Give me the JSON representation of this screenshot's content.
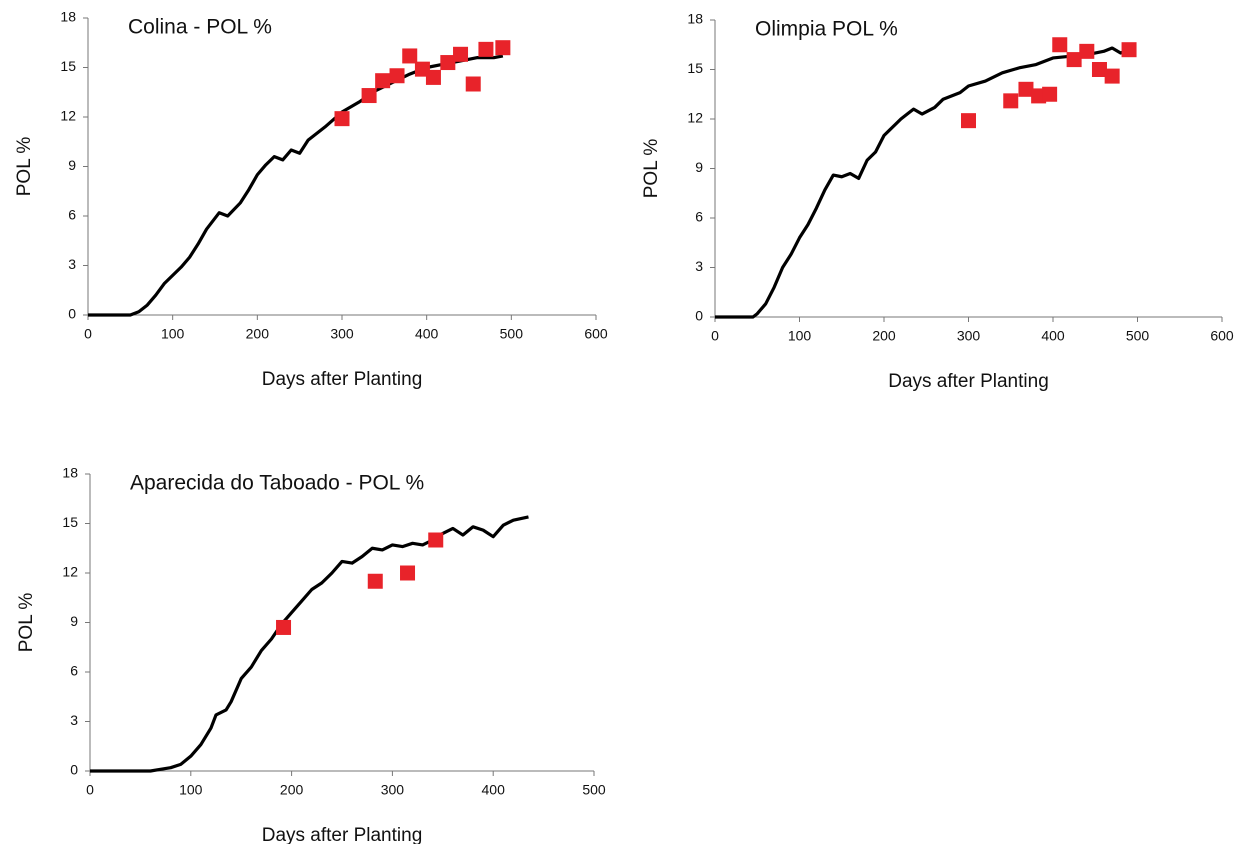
{
  "chart_data": [
    {
      "type": "line",
      "title": "Colina - POL %",
      "x_label": "Days after Planting",
      "y_label": "POL %",
      "xlim": [
        0,
        600
      ],
      "xticks": [
        0,
        100,
        200,
        300,
        400,
        500,
        600
      ],
      "ylim": [
        0,
        18
      ],
      "yticks": [
        0,
        3,
        6,
        9,
        12,
        15,
        18
      ],
      "series": [
        {
          "type": "line",
          "color": "#000000",
          "x": [
            0,
            50,
            60,
            70,
            80,
            90,
            100,
            110,
            120,
            130,
            140,
            155,
            165,
            180,
            190,
            200,
            210,
            220,
            230,
            240,
            250,
            260,
            280,
            300,
            320,
            340,
            360,
            380,
            400,
            420,
            440,
            460,
            480,
            490
          ],
          "values": [
            0,
            0,
            0.2,
            0.6,
            1.2,
            1.9,
            2.4,
            2.9,
            3.5,
            4.3,
            5.2,
            6.2,
            6.0,
            6.8,
            7.6,
            8.5,
            9.1,
            9.6,
            9.4,
            10.0,
            9.8,
            10.6,
            11.4,
            12.3,
            12.9,
            13.6,
            14.1,
            14.6,
            15.0,
            15.2,
            15.4,
            15.6,
            15.6,
            15.7
          ]
        },
        {
          "type": "scatter",
          "marker": "square",
          "color": "#e8232a",
          "x": [
            300,
            332,
            348,
            365,
            380,
            395,
            408,
            425,
            440,
            455,
            470,
            490
          ],
          "values": [
            11.9,
            13.3,
            14.2,
            14.5,
            15.7,
            14.9,
            14.4,
            15.3,
            15.8,
            14.0,
            16.1,
            16.2
          ]
        }
      ]
    },
    {
      "type": "line",
      "title": "Olimpia POL %",
      "x_label": "Days after Planting",
      "y_label": "POL %",
      "xlim": [
        0,
        600
      ],
      "xticks": [
        0,
        100,
        200,
        300,
        400,
        500,
        600
      ],
      "ylim": [
        0,
        18
      ],
      "yticks": [
        0,
        3,
        6,
        9,
        12,
        15,
        18
      ],
      "series": [
        {
          "type": "line",
          "color": "#000000",
          "x": [
            0,
            45,
            50,
            60,
            70,
            80,
            90,
            100,
            110,
            120,
            130,
            140,
            150,
            160,
            170,
            180,
            190,
            200,
            210,
            220,
            230,
            235,
            245,
            260,
            270,
            290,
            300,
            320,
            340,
            360,
            380,
            400,
            420,
            440,
            460,
            470,
            480,
            490
          ],
          "values": [
            0,
            0,
            0.2,
            0.8,
            1.8,
            3.0,
            3.8,
            4.8,
            5.6,
            6.6,
            7.7,
            8.6,
            8.5,
            8.7,
            8.4,
            9.5,
            10.0,
            11.0,
            11.5,
            12.0,
            12.4,
            12.6,
            12.3,
            12.7,
            13.2,
            13.6,
            14.0,
            14.3,
            14.8,
            15.1,
            15.3,
            15.7,
            15.8,
            15.9,
            16.1,
            16.3,
            16.0,
            16.2
          ]
        },
        {
          "type": "scatter",
          "marker": "square",
          "color": "#e8232a",
          "x": [
            300,
            350,
            368,
            383,
            396,
            408,
            425,
            440,
            455,
            470,
            490
          ],
          "values": [
            11.9,
            13.1,
            13.8,
            13.4,
            13.5,
            16.5,
            15.6,
            16.1,
            15.0,
            14.6,
            16.2
          ]
        }
      ]
    },
    {
      "type": "line",
      "title": "Aparecida do Taboado - POL %",
      "x_label": "Days after Planting",
      "y_label": "POL %",
      "xlim": [
        0,
        500
      ],
      "xticks": [
        0,
        100,
        200,
        300,
        400,
        500
      ],
      "ylim": [
        0,
        18
      ],
      "yticks": [
        0,
        3,
        6,
        9,
        12,
        15,
        18
      ],
      "series": [
        {
          "type": "line",
          "color": "#000000",
          "x": [
            0,
            60,
            70,
            80,
            90,
            100,
            110,
            120,
            125,
            135,
            140,
            150,
            160,
            170,
            180,
            190,
            200,
            210,
            220,
            230,
            240,
            250,
            260,
            270,
            280,
            290,
            300,
            310,
            320,
            330,
            340,
            350,
            360,
            370,
            380,
            390,
            400,
            410,
            420,
            435
          ],
          "values": [
            0,
            0,
            0.1,
            0.2,
            0.4,
            0.9,
            1.6,
            2.6,
            3.4,
            3.7,
            4.2,
            5.6,
            6.3,
            7.3,
            8.0,
            8.9,
            9.6,
            10.3,
            11.0,
            11.4,
            12.0,
            12.7,
            12.6,
            13.0,
            13.5,
            13.4,
            13.7,
            13.6,
            13.8,
            13.7,
            14.0,
            14.4,
            14.7,
            14.3,
            14.8,
            14.6,
            14.2,
            14.9,
            15.2,
            15.4
          ]
        },
        {
          "type": "scatter",
          "marker": "square",
          "color": "#e8232a",
          "x": [
            192,
            283,
            315,
            343
          ],
          "values": [
            8.7,
            11.5,
            12.0,
            14.0
          ]
        }
      ]
    }
  ]
}
